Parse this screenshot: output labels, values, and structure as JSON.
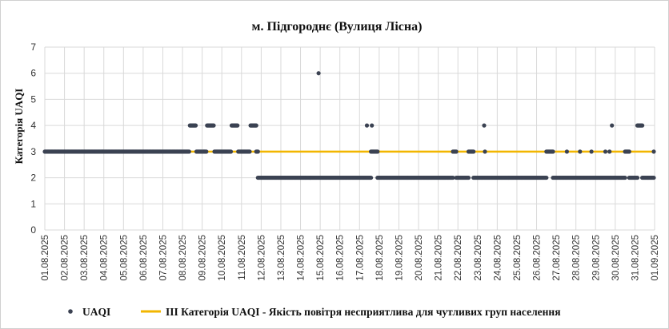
{
  "chart_data": {
    "type": "scatter",
    "title": "м. Підгороднє (Вулиця Лісна)",
    "ylabel": "Категорія UAQI",
    "xlabel": "",
    "ylim": [
      0,
      7
    ],
    "yticks": [
      0,
      1,
      2,
      3,
      4,
      5,
      6,
      7
    ],
    "xlim": [
      "01.08.2025",
      "01.09.2025"
    ],
    "x_ticks": [
      "01.08.2025",
      "02.08.2025",
      "03.08.2025",
      "04.08.2025",
      "05.08.2025",
      "06.08.2025",
      "07.08.2025",
      "08.08.2025",
      "09.08.2025",
      "10.08.2025",
      "11.08.2025",
      "12.08.2025",
      "13.08.2025",
      "14.08.2025",
      "15.08.2025",
      "16.08.2025",
      "17.08.2025",
      "18.08.2025",
      "19.08.2025",
      "20.08.2025",
      "21.08.2025",
      "22.08.2025",
      "23.08.2025",
      "24.08.2025",
      "25.08.2025",
      "26.08.2025",
      "27.08.2025",
      "28.08.2025",
      "29.08.2025",
      "30.08.2025",
      "31.08.2025",
      "01.09.2025"
    ],
    "grid": true,
    "legend_position": "bottom",
    "colors": {
      "uaqi": "#3b4252",
      "threshold": "#f2b600"
    },
    "series": [
      {
        "name": "UAQI",
        "type": "scatter",
        "segments": [
          {
            "from": "01.08.2025 00:00",
            "to": "08.08.2025 08:00",
            "value": 3
          },
          {
            "from": "08.08.2025 09:00",
            "to": "08.08.2025 16:00",
            "value": 4
          },
          {
            "from": "08.08.2025 17:00",
            "to": "09.08.2025 05:00",
            "value": 3
          },
          {
            "from": "09.08.2025 06:00",
            "to": "09.08.2025 14:00",
            "value": 4
          },
          {
            "from": "09.08.2025 15:00",
            "to": "10.08.2025 11:00",
            "value": 3
          },
          {
            "from": "10.08.2025 12:00",
            "to": "10.08.2025 19:00",
            "value": 4
          },
          {
            "from": "10.08.2025 20:00",
            "to": "11.08.2025 10:00",
            "value": 3
          },
          {
            "from": "11.08.2025 11:00",
            "to": "11.08.2025 18:00",
            "value": 4
          },
          {
            "from": "11.08.2025 18:00",
            "to": "11.08.2025 20:00",
            "value": 3
          },
          {
            "from": "11.08.2025 20:00",
            "to": "14.08.2025 12:00",
            "value": 2
          },
          {
            "from": "14.08.2025 12:00",
            "to": "17.08.2025 14:00",
            "value": 2
          },
          {
            "from": "17.08.2025 14:00",
            "to": "17.08.2025 22:00",
            "value": 3
          },
          {
            "from": "17.08.2025 22:00",
            "to": "21.08.2025 18:00",
            "value": 2
          },
          {
            "from": "21.08.2025 18:00",
            "to": "21.08.2025 22:00",
            "value": 3
          },
          {
            "from": "21.08.2025 22:00",
            "to": "22.08.2025 13:00",
            "value": 2
          },
          {
            "from": "22.08.2025 13:00",
            "to": "22.08.2025 19:00",
            "value": 3
          },
          {
            "from": "22.08.2025 19:00",
            "to": "26.08.2025 12:00",
            "value": 2
          },
          {
            "from": "26.08.2025 12:00",
            "to": "26.08.2025 20:00",
            "value": 3
          },
          {
            "from": "26.08.2025 20:00",
            "to": "30.08.2025 12:00",
            "value": 2
          },
          {
            "from": "30.08.2025 12:00",
            "to": "30.08.2025 17:00",
            "value": 3
          },
          {
            "from": "30.08.2025 17:00",
            "to": "31.08.2025 03:00",
            "value": 2
          },
          {
            "from": "31.08.2025 03:00",
            "to": "31.08.2025 09:00",
            "value": 4
          },
          {
            "from": "31.08.2025 09:00",
            "to": "31.08.2025 23:00",
            "value": 2
          }
        ],
        "points": [
          {
            "x": "14.08.2025 22:00",
            "y": 6
          },
          {
            "x": "17.08.2025 09:00",
            "y": 4
          },
          {
            "x": "17.08.2025 15:00",
            "y": 4
          },
          {
            "x": "23.08.2025 08:00",
            "y": 4
          },
          {
            "x": "23.08.2025 09:00",
            "y": 3
          },
          {
            "x": "27.08.2025 13:00",
            "y": 3
          },
          {
            "x": "28.08.2025 05:00",
            "y": 3
          },
          {
            "x": "28.08.2025 19:00",
            "y": 3
          },
          {
            "x": "29.08.2025 12:00",
            "y": 3
          },
          {
            "x": "29.08.2025 17:00",
            "y": 3
          },
          {
            "x": "29.08.2025 20:00",
            "y": 4
          },
          {
            "x": "31.08.2025 23:00",
            "y": 3
          }
        ]
      },
      {
        "name": "III Категорія UAQI - Якість повітря несприятлива для чутливих груп населення",
        "type": "line",
        "value": 3
      }
    ]
  }
}
